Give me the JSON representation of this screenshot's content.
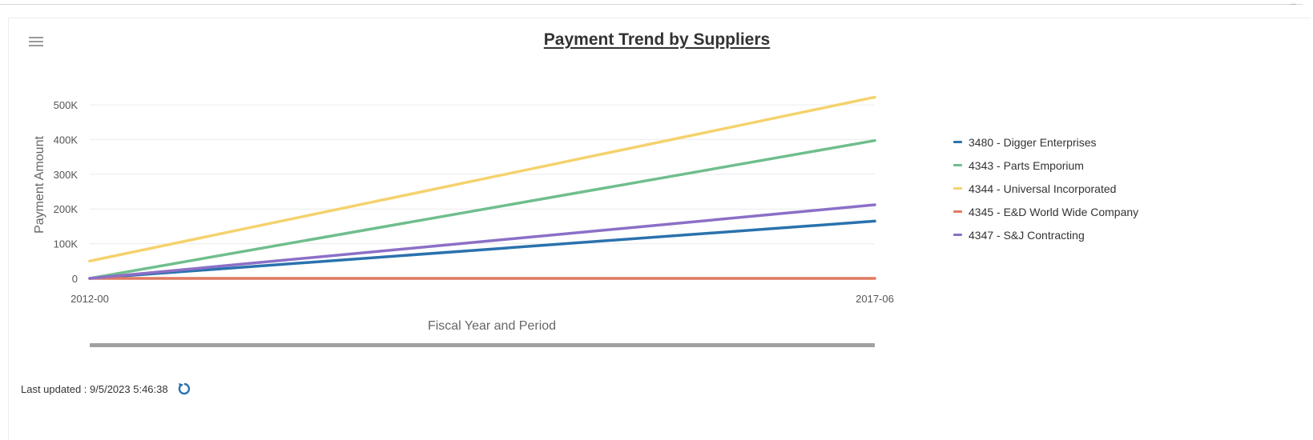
{
  "header": {
    "corner_glyph": "..."
  },
  "menu": {
    "icon": "hamburger-menu-icon"
  },
  "chart_data": {
    "type": "line",
    "title": "Payment Trend by Suppliers",
    "xlabel": "Fiscal Year and Period",
    "ylabel": "Payment Amount",
    "x": [
      "2012-00",
      "2017-06"
    ],
    "ylim": [
      0,
      500000
    ],
    "yticks": [
      0,
      100000,
      200000,
      300000,
      400000,
      500000
    ],
    "ytick_labels": [
      "0",
      "100K",
      "200K",
      "300K",
      "400K",
      "500K"
    ],
    "grid": true,
    "legend_position": "right",
    "series": [
      {
        "name": "3480 - Digger Enterprises",
        "color": "#2a72ad",
        "values": [
          0,
          165000
        ]
      },
      {
        "name": "4343 - Parts Emporium",
        "color": "#6fbe8d",
        "values": [
          0,
          397000
        ]
      },
      {
        "name": "4344 - Universal Incorporated",
        "color": "#f5d26d",
        "values": [
          50000,
          522000
        ]
      },
      {
        "name": "4345 - E&D World Wide Company",
        "color": "#df7a61",
        "values": [
          0,
          0
        ]
      },
      {
        "name": "4347 - S&J Contracting",
        "color": "#8c6fc7",
        "values": [
          0,
          212000
        ]
      }
    ]
  },
  "footer": {
    "last_updated": "Last updated : 9/5/2023 5:46:38",
    "refresh_icon": "refresh-icon"
  }
}
